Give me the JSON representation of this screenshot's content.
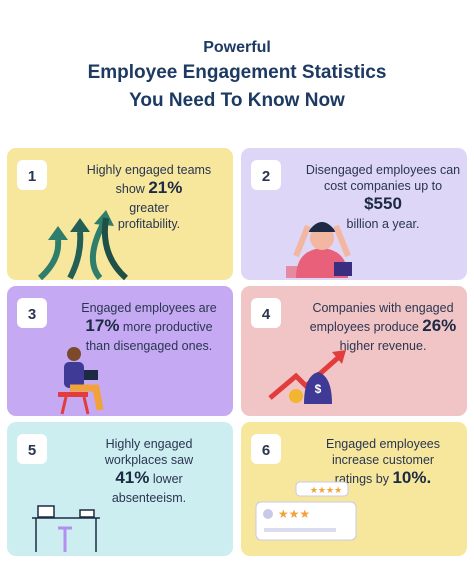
{
  "header": {
    "title": [
      "Powerful",
      "Employee Engagement Statistics",
      "You Need To Know Now"
    ]
  },
  "cards": [
    {
      "number": "1",
      "lines": [
        [
          "Highly engaged teams"
        ],
        [
          "show ",
          {
            "strong": "21%"
          }
        ],
        [
          "greater"
        ],
        [
          "profitability."
        ]
      ]
    },
    {
      "number": "2",
      "lines": [
        [
          "Disengaged employees can"
        ],
        [
          "cost companies up to"
        ],
        [
          {
            "strong": "$550"
          }
        ],
        [
          "billion a year."
        ]
      ]
    },
    {
      "number": "3",
      "lines": [
        [
          "Engaged employees are"
        ],
        [
          {
            "strong": "17%"
          },
          " more productive"
        ],
        [
          "than disengaged ones."
        ]
      ]
    },
    {
      "number": "4",
      "lines": [
        [
          "Companies with engaged"
        ],
        [
          "employees produce ",
          {
            "strong": "26%"
          }
        ],
        [
          "higher revenue."
        ]
      ]
    },
    {
      "number": "5",
      "lines": [
        [
          "Highly engaged"
        ],
        [
          "workplaces saw"
        ],
        [
          {
            "strong": "41%"
          },
          " lower"
        ],
        [
          "absenteeism."
        ]
      ]
    },
    {
      "number": "6",
      "lines": [
        [
          "Engaged employees"
        ],
        [
          "increase customer"
        ],
        [
          "ratings by ",
          {
            "strong": "10%."
          }
        ]
      ]
    }
  ]
}
